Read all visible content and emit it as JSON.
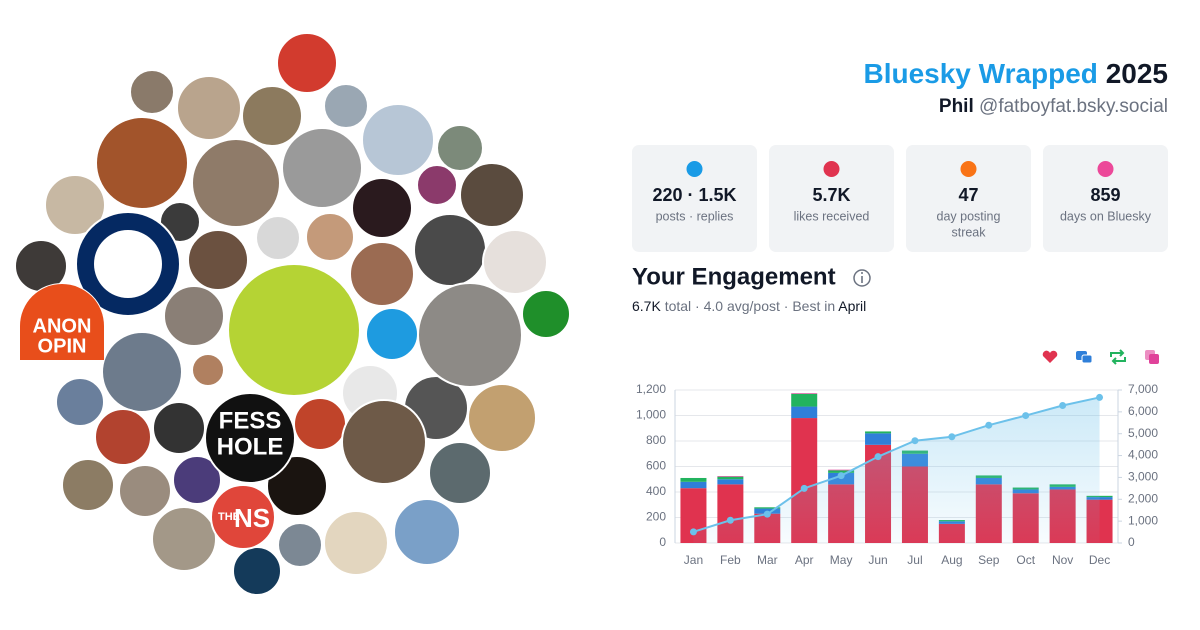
{
  "header": {
    "title_brand": "Bluesky Wrapped",
    "title_year": "2025",
    "display_name": "Phil",
    "handle": "@fatboyfat.bsky.social"
  },
  "stats": [
    {
      "value": "220 · 1.5K",
      "label": "posts · replies"
    },
    {
      "value": "5.7K",
      "label": "likes received"
    },
    {
      "value": "47",
      "label": [
        "day posting",
        "streak"
      ]
    },
    {
      "value": "859",
      "label": "days on Bluesky"
    }
  ],
  "engagement": {
    "heading": "Your Engagement",
    "summary": [
      "6.7K",
      "total · 4.0 avg/post · Best in",
      "April"
    ]
  },
  "avatar_texts": [
    "ANON",
    "OPIN",
    "FESS",
    "HOLE",
    "THE",
    "NS"
  ],
  "chart_data": {
    "type": "stacked-bar-line",
    "categories": [
      "Jan",
      "Feb",
      "Mar",
      "Apr",
      "May",
      "Jun",
      "Jul",
      "Aug",
      "Sep",
      "Oct",
      "Nov",
      "Dec"
    ],
    "series": [
      {
        "color": "#e0334f",
        "values": [
          430,
          460,
          230,
          980,
          460,
          770,
          600,
          150,
          460,
          390,
          420,
          340
        ]
      },
      {
        "color": "#2f7fd9",
        "values": [
          50,
          40,
          40,
          90,
          90,
          90,
          100,
          20,
          50,
          30,
          20,
          20
        ]
      },
      {
        "color": "#22b35e",
        "values": [
          30,
          20,
          10,
          100,
          20,
          15,
          25,
          10,
          20,
          15,
          20,
          10
        ]
      },
      {
        "color": "#e0429a",
        "values": [
          0,
          5,
          0,
          5,
          5,
          0,
          0,
          0,
          0,
          0,
          0,
          0
        ]
      },
      {
        "color": "#6cc1ea",
        "axis": "y2",
        "values": [
          510,
          1040,
          1320,
          2500,
          3080,
          3950,
          4680,
          4860,
          5390,
          5830,
          6290,
          6660
        ]
      }
    ],
    "ylim": [
      0,
      1200
    ],
    "yticks": [
      0,
      200,
      400,
      600,
      800,
      {
        "value": 1000,
        "label": "1,000"
      },
      {
        "value": 1200,
        "label": "1,200"
      }
    ],
    "y2lim": [
      0,
      7000
    ],
    "y2ticks": [
      0,
      {
        "value": 1000,
        "label": "1,000"
      },
      {
        "value": 2000,
        "label": "2,000"
      },
      {
        "value": 3000,
        "label": "3,000"
      },
      {
        "value": 4000,
        "label": "4,000"
      },
      {
        "value": 5000,
        "label": "5,000"
      },
      {
        "value": 6000,
        "label": "6,000"
      },
      {
        "value": 7000,
        "label": "7,000"
      }
    ],
    "grid": true
  }
}
